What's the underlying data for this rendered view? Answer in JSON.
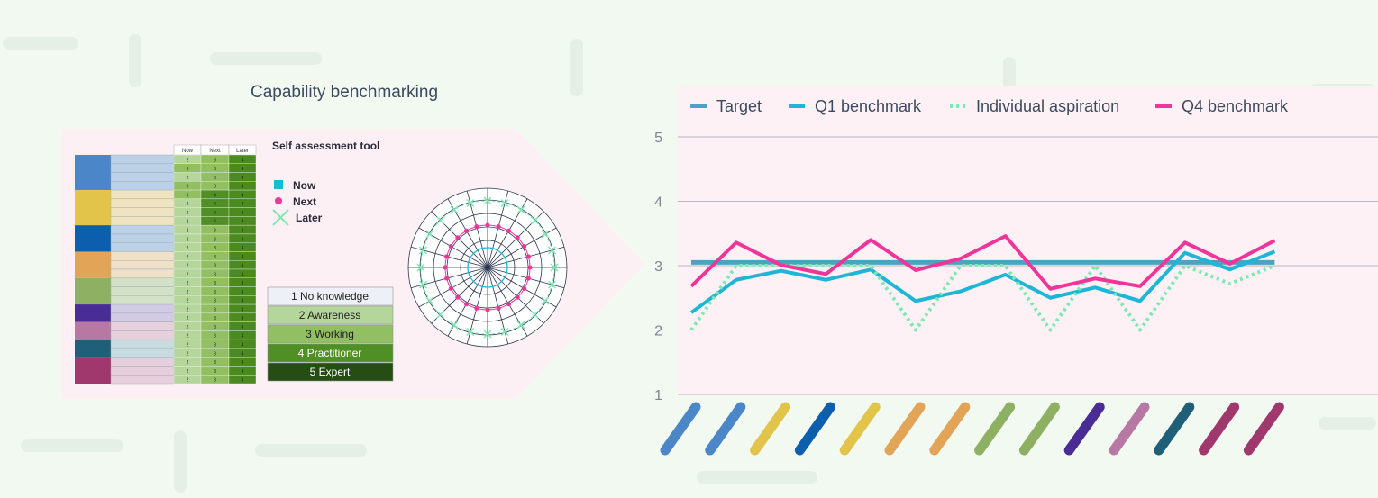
{
  "title": "Capability benchmarking",
  "tool": {
    "title": "Self assessment tool",
    "headers": [
      "Now",
      "Next",
      "Later"
    ],
    "rows": [
      [
        2,
        3,
        4
      ],
      [
        3,
        3,
        4
      ],
      [
        2,
        3,
        4
      ],
      [
        3,
        3,
        4
      ],
      [
        3,
        4,
        4
      ],
      [
        2,
        4,
        4
      ],
      [
        2,
        4,
        4
      ],
      [
        2,
        4,
        4
      ],
      [
        2,
        3,
        4
      ],
      [
        2,
        3,
        4
      ],
      [
        2,
        3,
        4
      ],
      [
        2,
        3,
        4
      ],
      [
        2,
        3,
        4
      ],
      [
        2,
        3,
        4
      ],
      [
        2,
        3,
        4
      ],
      [
        2,
        3,
        4
      ],
      [
        2,
        3,
        4
      ],
      [
        2,
        3,
        4
      ],
      [
        2,
        3,
        4
      ],
      [
        2,
        3,
        4
      ],
      [
        2,
        3,
        4
      ],
      [
        2,
        3,
        4
      ],
      [
        2,
        3,
        4
      ],
      [
        2,
        3,
        4
      ],
      [
        2,
        3,
        4
      ],
      [
        2,
        3,
        4
      ]
    ],
    "legend": [
      "Now",
      "Next",
      "Later"
    ],
    "levels": [
      "1 No knowledge",
      "2 Awareness",
      "3 Working",
      "4 Practitioner",
      "5 Expert"
    ]
  },
  "chart_data": {
    "type": "line",
    "categories": [
      null,
      null,
      null,
      null,
      null,
      null,
      null,
      null,
      null,
      null,
      null,
      null,
      null,
      null
    ],
    "category_colors": [
      "#4a86c8",
      "#4a86c8",
      "#e3c44a",
      "#0b5fad",
      "#e3c44a",
      "#e2a457",
      "#e2a457",
      "#8db063",
      "#8db063",
      "#4a2d94",
      "#b779a3",
      "#1f5f78",
      "#a0386e",
      "#a0386e"
    ],
    "ylim": [
      1,
      5
    ],
    "yticks": [
      1,
      2,
      3,
      4,
      5
    ],
    "grid": true,
    "series": [
      {
        "name": "Target",
        "color": "#4aa3c0",
        "values": [
          3.05,
          3.05,
          3.05,
          3.05,
          3.05,
          3.05,
          3.05,
          3.05,
          3.05,
          3.05,
          3.05,
          3.05,
          3.05,
          3.05
        ]
      },
      {
        "name": "Q1 benchmark",
        "color": "#1fb5d6",
        "values": [
          2.27,
          2.78,
          2.92,
          2.78,
          2.94,
          2.45,
          2.6,
          2.86,
          2.5,
          2.66,
          2.45,
          3.2,
          2.94,
          3.22
        ]
      },
      {
        "name": "Individual aspiration",
        "color": "#7ee8b4",
        "dashed": true,
        "values": [
          2,
          3,
          3,
          3,
          3,
          2,
          3,
          3,
          2,
          3,
          2,
          3,
          2.72,
          3
        ]
      },
      {
        "name": "Q4 benchmark",
        "color": "#f0359a",
        "values": [
          2.68,
          3.36,
          3.01,
          2.87,
          3.4,
          2.93,
          3.11,
          3.46,
          2.64,
          2.8,
          2.68,
          3.36,
          3.03,
          3.39
        ]
      }
    ]
  }
}
